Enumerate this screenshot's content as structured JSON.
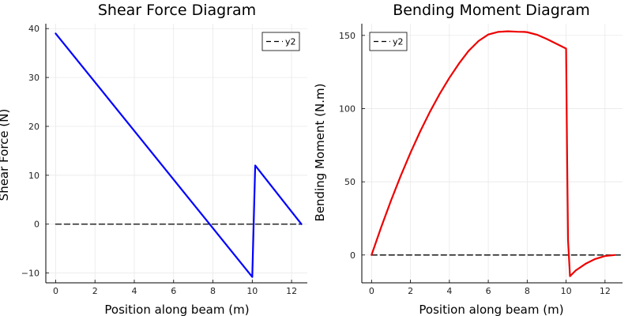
{
  "chart_data": [
    {
      "type": "line",
      "title": "Shear Force Diagram",
      "xlabel": "Position along beam (m)",
      "ylabel": "Shear Force (N)",
      "xlim": [
        -0.5,
        12.8
      ],
      "ylim": [
        -12,
        41
      ],
      "xticks": [
        0,
        2,
        4,
        6,
        8,
        10,
        12
      ],
      "yticks": [
        -10,
        0,
        10,
        20,
        30,
        40
      ],
      "grid": true,
      "legend_position": "top-right",
      "series": [
        {
          "name": "",
          "color": "#0000ff",
          "style": "solid",
          "x": [
            0,
            10,
            10.15,
            12.5
          ],
          "y": [
            39,
            -10.8,
            12,
            0
          ]
        },
        {
          "name": "y2",
          "color": "#000000",
          "style": "dashed",
          "x": [
            0,
            12.5
          ],
          "y": [
            0,
            0
          ]
        }
      ]
    },
    {
      "type": "line",
      "title": "Bending Moment Diagram",
      "xlabel": "Position along beam (m)",
      "ylabel": "Bending Moment (N.m)",
      "xlim": [
        -0.5,
        12.9
      ],
      "ylim": [
        -19,
        158
      ],
      "xticks": [
        0,
        2,
        4,
        6,
        8,
        10,
        12
      ],
      "yticks": [
        0,
        50,
        100,
        150
      ],
      "grid": true,
      "legend_position": "top-left",
      "series": [
        {
          "name": "",
          "color": "#ee0000",
          "style": "solid",
          "x": [
            0,
            0.5,
            1,
            1.5,
            2,
            2.5,
            3,
            3.5,
            4,
            4.5,
            5,
            5.5,
            6,
            6.5,
            7,
            7.5,
            7.85,
            8,
            8.5,
            9,
            9.5,
            10,
            10.05,
            10.1,
            10.2,
            10.5,
            11,
            11.5,
            12,
            12.5
          ],
          "y": [
            0,
            19.2,
            37.2,
            54.1,
            69.8,
            84.4,
            97.8,
            110,
            121,
            130.9,
            139.6,
            146.2,
            150.6,
            152.4,
            152.8,
            152.5,
            152.4,
            152.2,
            150.5,
            147.6,
            144.3,
            141,
            70,
            10,
            -14.5,
            -10.5,
            -6,
            -2.7,
            -0.7,
            0
          ]
        },
        {
          "name": "y2",
          "color": "#000000",
          "style": "dashed",
          "x": [
            0,
            12.9
          ],
          "y": [
            0,
            0
          ]
        }
      ]
    }
  ]
}
